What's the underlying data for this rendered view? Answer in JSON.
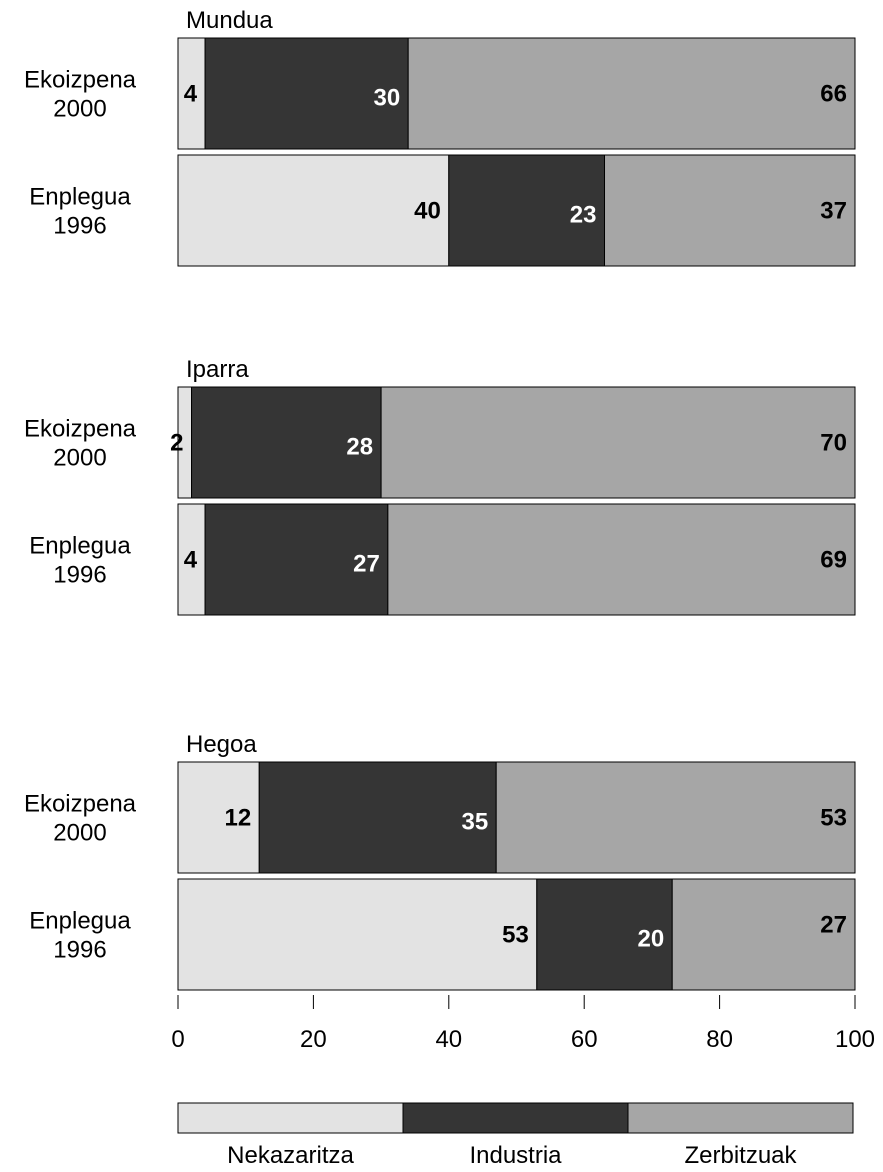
{
  "chart_data": {
    "type": "bar",
    "orientation": "horizontal",
    "stacked": true,
    "xlim": [
      0,
      100
    ],
    "xticks": [
      0,
      20,
      40,
      60,
      80,
      100
    ],
    "grid": false,
    "legend_position": "bottom",
    "series": [
      {
        "name": "Nekazaritza",
        "color": "#e3e3e3"
      },
      {
        "name": "Industria",
        "color": "#353535"
      },
      {
        "name": "Zerbitzuak",
        "color": "#a6a6a6"
      }
    ],
    "groups": [
      {
        "title": "Mundua",
        "rows": [
          {
            "label_line1": "Ekoizpena",
            "label_line2": "2000",
            "values": [
              4,
              30,
              66
            ]
          },
          {
            "label_line1": "Enplegua",
            "label_line2": "1996",
            "values": [
              40,
              23,
              37
            ]
          }
        ]
      },
      {
        "title": "Iparra",
        "rows": [
          {
            "label_line1": "Ekoizpena",
            "label_line2": "2000",
            "values": [
              2,
              28,
              70
            ]
          },
          {
            "label_line1": "Enplegua",
            "label_line2": "1996",
            "values": [
              4,
              27,
              69
            ]
          }
        ]
      },
      {
        "title": "Hegoa",
        "rows": [
          {
            "label_line1": "Ekoizpena",
            "label_line2": "2000",
            "values": [
              12,
              35,
              53
            ]
          },
          {
            "label_line1": "Enplegua",
            "label_line2": "1996",
            "values": [
              53,
              20,
              27
            ]
          }
        ]
      }
    ]
  }
}
